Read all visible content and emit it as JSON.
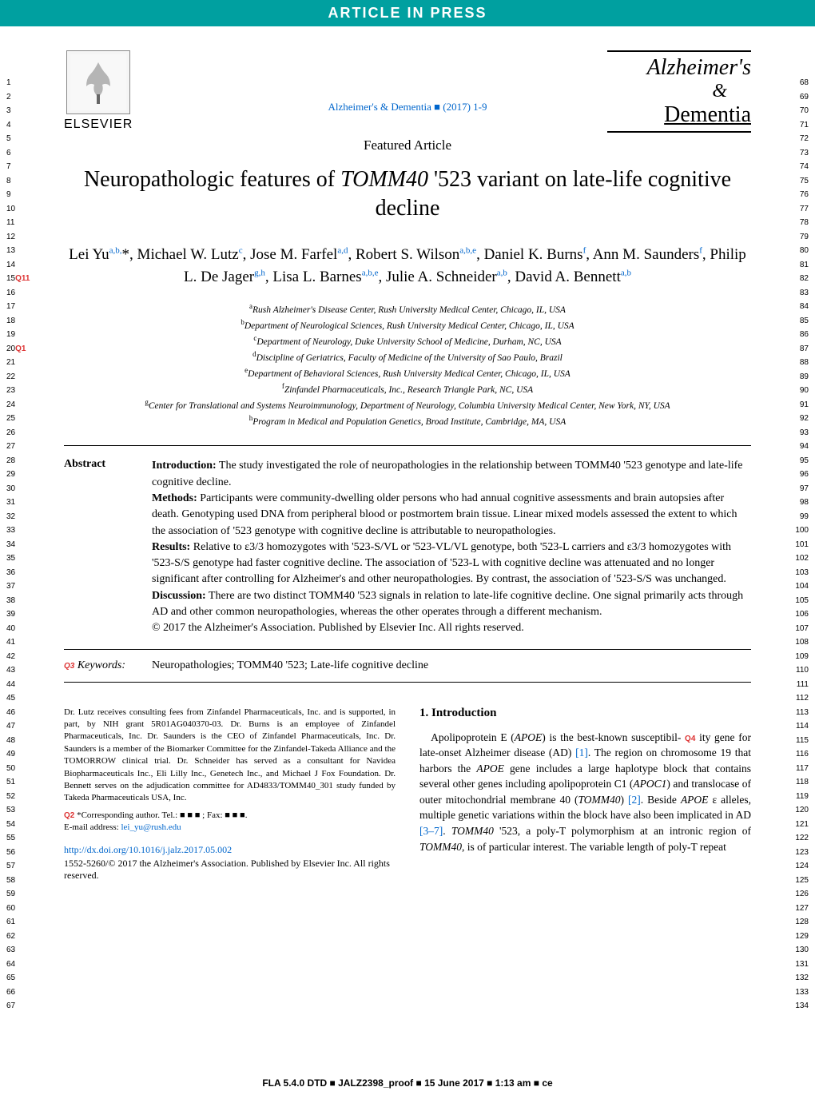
{
  "banner": "ARTICLE IN PRESS",
  "publisher": "ELSEVIER",
  "journal_logo": {
    "line1": "Alzheimer's",
    "amp": "&",
    "line2": "Dementia"
  },
  "citation": "Alzheimer's & Dementia ■ (2017) 1-9",
  "article_type": "Featured Article",
  "title_pre": "Neuropathologic features of ",
  "title_gene": "TOMM40",
  "title_post": " '523 variant on late-life cognitive decline",
  "authors_html": "Lei Yu<sup>a,b,</sup>*, Michael W. Lutz<sup>c</sup>, Jose M. Farfel<sup>a,d</sup>, Robert S. Wilson<sup>a,b,e</sup>, Daniel K. Burns<sup>f</sup>, Ann M. Saunders<sup>f</sup>, Philip L. De Jager<sup>g,h</sup>, Lisa L. Barnes<sup>a,b,e</sup>, Julie A. Schneider<sup>a,b</sup>, David A. Bennett<sup>a,b</sup>",
  "affiliations": [
    "Rush Alzheimer's Disease Center, Rush University Medical Center, Chicago, IL, USA",
    "Department of Neurological Sciences, Rush University Medical Center, Chicago, IL, USA",
    "Department of Neurology, Duke University School of Medicine, Durham, NC, USA",
    "Discipline of Geriatrics, Faculty of Medicine of the University of Sao Paulo, Brazil",
    "Department of Behavioral Sciences, Rush University Medical Center, Chicago, IL, USA",
    "Zinfandel Pharmaceuticals, Inc., Research Triangle Park, NC, USA",
    "Center for Translational and Systems Neuroimmunology, Department of Neurology, Columbia University Medical Center, New York, NY, USA",
    "Program in Medical and Population Genetics, Broad Institute, Cambridge, MA, USA"
  ],
  "aff_markers": [
    "a",
    "b",
    "c",
    "d",
    "e",
    "f",
    "g",
    "h"
  ],
  "abstract": {
    "label": "Abstract",
    "intro_label": "Introduction:",
    "intro": " The study investigated the role of neuropathologies in the relationship between TOMM40 '523 genotype and late-life cognitive decline.",
    "methods_label": "Methods:",
    "methods": " Participants were community-dwelling older persons who had annual cognitive assessments and brain autopsies after death. Genotyping used DNA from peripheral blood or postmortem brain tissue. Linear mixed models assessed the extent to which the association of '523 genotype with cognitive decline is attributable to neuropathologies.",
    "results_label": "Results:",
    "results": " Relative to ε3/3 homozygotes with '523-S/VL or '523-VL/VL genotype, both '523-L carriers and ε3/3 homozygotes with '523-S/S genotype had faster cognitive decline. The association of '523-L with cognitive decline was attenuated and no longer significant after controlling for Alzheimer's and other neuropathologies. By contrast, the association of '523-S/S was unchanged.",
    "discussion_label": "Discussion:",
    "discussion": " There are two distinct TOMM40 '523 signals in relation to late-life cognitive decline. One signal primarily acts through AD and other common neuropathologies, whereas the other operates through a different mechanism.",
    "copyright": "© 2017 the Alzheimer's Association. Published by Elsevier Inc. All rights reserved."
  },
  "keywords": {
    "label": "Keywords:",
    "text": "Neuropathologies; TOMM40 '523; Late-life cognitive decline"
  },
  "intro_section": {
    "heading": "1. Introduction",
    "body_pre": "Apolipoprotein E (",
    "gene1": "APOE",
    "body_mid1": ") is the best-known susceptibil-",
    "body_mid2": "ity gene for late-onset Alzheimer disease (AD) ",
    "ref1": "[1]",
    "body_mid3": ". The region on chromosome 19 that harbors the ",
    "body_mid4": " gene includes a large haplotype block that contains several other genes including apolipoprotein C1 (",
    "gene2": "APOC1",
    "body_mid5": ") and translocase of outer mitochondrial membrane 40 (",
    "gene3": "TOMM40",
    "body_mid6": ") ",
    "ref2": "[2]",
    "body_mid7": ". Beside ",
    "body_mid8": " ε alleles, multiple genetic variations within the block have also been implicated in AD ",
    "ref3": "[3–7]",
    "body_mid9": ". ",
    "body_mid10": " '523, a poly-T polymorphism at an intronic region of ",
    "body_mid11": ", is of particular interest. The variable length of poly-T repeat"
  },
  "disclosure": "Dr. Lutz receives consulting fees from Zinfandel Pharmaceuticals, Inc. and is supported, in part, by NIH grant 5R01AG040370-03. Dr. Burns is an employee of Zinfandel Pharmaceuticals, Inc. Dr. Saunders is the CEO of Zinfandel Pharmaceuticals, Inc. Dr. Saunders is a member of the Biomarker Committee for the Zinfandel-Takeda Alliance and the TOMORROW clinical trial. Dr. Schneider has served as a consultant for Navidea Biopharmaceuticals Inc., Eli Lilly Inc., Genetech Inc., and Michael J Fox Foundation. Dr. Bennett serves on the adjudication committee for AD4833/TOMM40_301 study funded by Takeda Pharmaceuticals USA, Inc.",
  "corresponding": "*Corresponding author. Tel.: ■ ■ ■ ; Fax: ■ ■ ■.",
  "email_label": "E-mail address: ",
  "email": "lei_yu@rush.edu",
  "doi": "http://dx.doi.org/10.1016/j.jalz.2017.05.002",
  "issn_copyright": "1552-5260/© 2017 the Alzheimer's Association. Published by Elsevier Inc. All rights reserved.",
  "footer": "FLA 5.4.0 DTD ■ JALZ2398_proof ■ 15 June 2017 ■ 1:13 am ■ ce",
  "queries": {
    "q1": "Q1",
    "q2": "Q2",
    "q3": "Q3",
    "q4": "Q4",
    "q11": "Q11"
  },
  "line_left_start": 1,
  "line_left_end": 67,
  "line_right_start": 68,
  "line_right_end": 134
}
